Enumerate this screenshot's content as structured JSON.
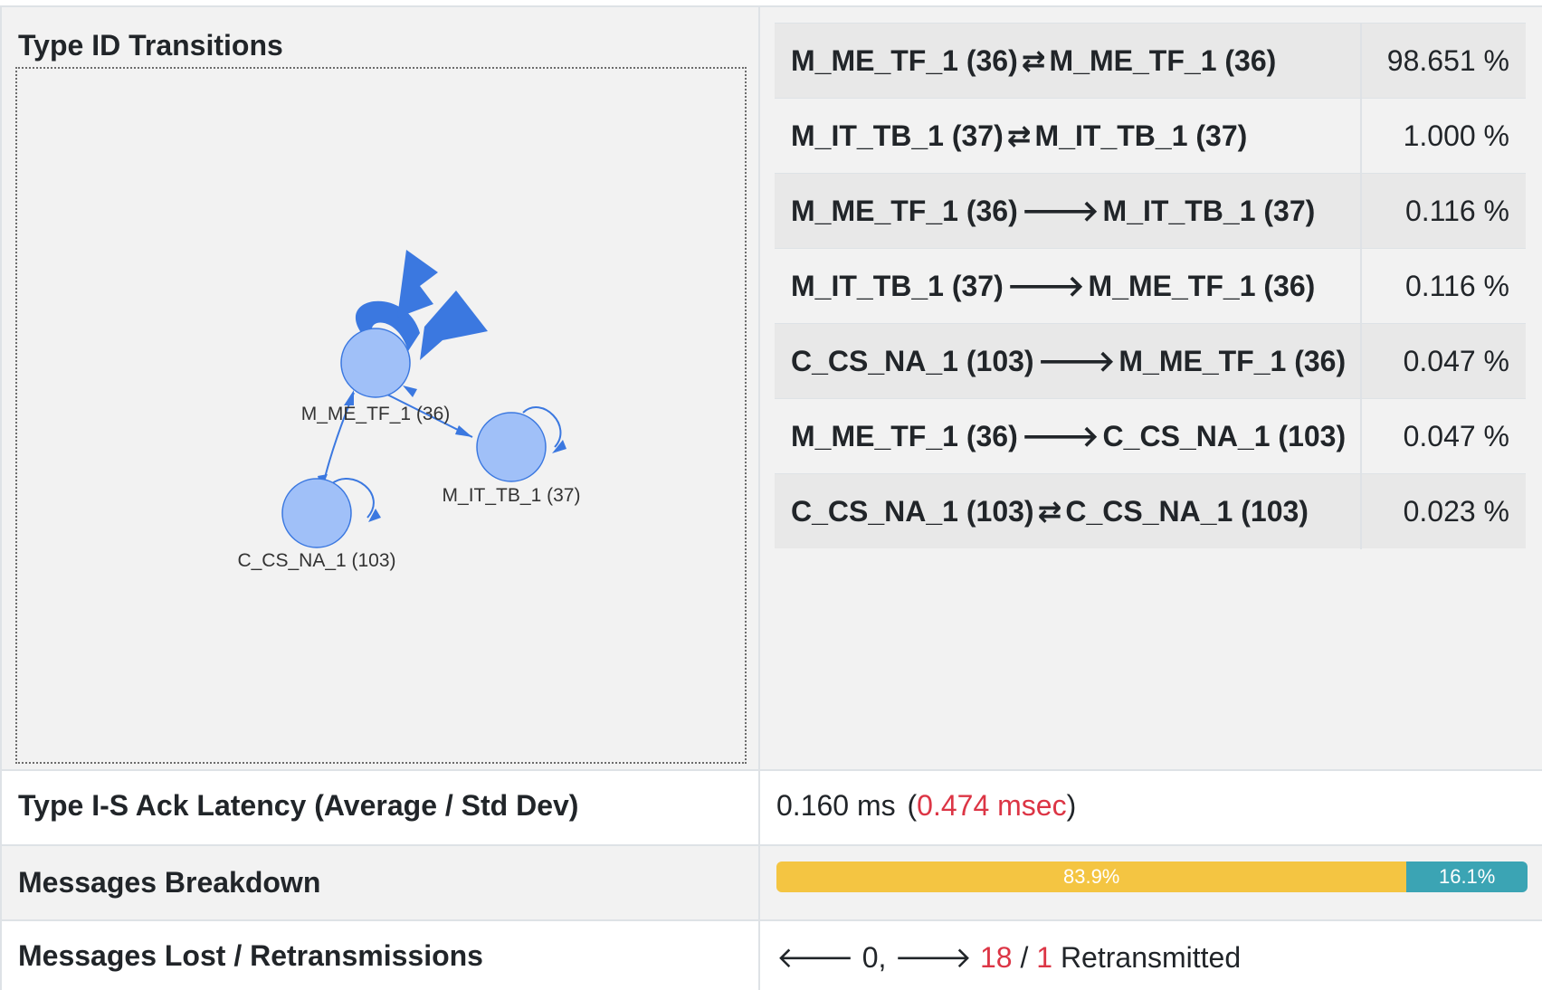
{
  "rows": {
    "transitions": {
      "label": "Type ID Transitions"
    },
    "latency": {
      "label": "Type I-S Ack Latency (Average / Std Dev)",
      "average": "0.160 ms",
      "open_paren": "(",
      "stddev": "0.474 msec",
      "close_paren": ")"
    },
    "breakdown": {
      "label": "Messages Breakdown",
      "segments": [
        {
          "label": "83.9%",
          "percent": 83.9,
          "color": "#f4c542"
        },
        {
          "label": "16.1%",
          "percent": 16.1,
          "color": "#3ba4b4"
        }
      ]
    },
    "lost": {
      "label": "Messages Lost / Retransmissions",
      "lost_in_arrow": "🡐",
      "lost_in": "0,",
      "lost_out_arrow": "🡒",
      "lost_out": "18",
      "slash": "/",
      "retransmitted": "1",
      "retransmitted_label": "Retransmitted"
    }
  },
  "graph": {
    "nodes": [
      {
        "id": "36",
        "label": "M_ME_TF_1 (36)"
      },
      {
        "id": "37",
        "label": "M_IT_TB_1 (37)"
      },
      {
        "id": "103",
        "label": "C_CS_NA_1 (103)"
      }
    ],
    "node_color": "#a0c0f8",
    "edge_color": "#3b78e0"
  },
  "transitions": [
    {
      "from": "M_ME_TF_1 (36)",
      "arrow": "⇄",
      "to": "M_ME_TF_1 (36)",
      "value": "98.651 %"
    },
    {
      "from": "M_IT_TB_1 (37)",
      "arrow": "⇄",
      "to": "M_IT_TB_1 (37)",
      "value": "1.000 %"
    },
    {
      "from": "M_ME_TF_1 (36)",
      "arrow": "🡒",
      "to": "M_IT_TB_1 (37)",
      "value": "0.116 %"
    },
    {
      "from": "M_IT_TB_1 (37)",
      "arrow": "🡒",
      "to": "M_ME_TF_1 (36)",
      "value": "0.116 %"
    },
    {
      "from": "C_CS_NA_1 (103)",
      "arrow": "🡒",
      "to": "M_ME_TF_1 (36)",
      "value": "0.047 %"
    },
    {
      "from": "M_ME_TF_1 (36)",
      "arrow": "🡒",
      "to": "C_CS_NA_1 (103)",
      "value": "0.047 %"
    },
    {
      "from": "C_CS_NA_1 (103)",
      "arrow": "⇄",
      "to": "C_CS_NA_1 (103)",
      "value": "0.023 %"
    }
  ]
}
